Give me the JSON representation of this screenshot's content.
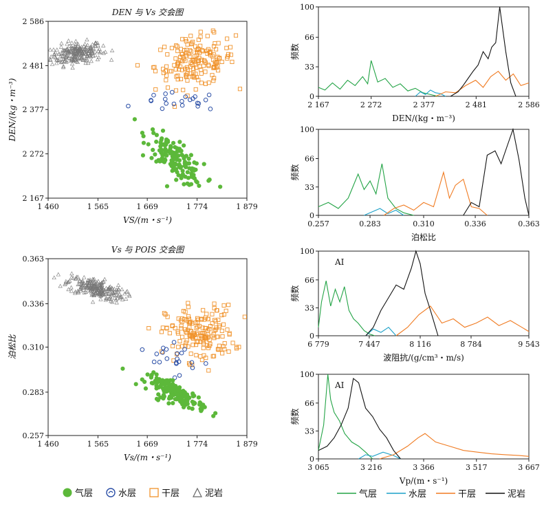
{
  "colors": {
    "gas": "#5cb83a",
    "water": "#2a4ea6",
    "dry": "#f0922a",
    "mud": "#888888",
    "gas_line": "#22a345",
    "water_line": "#1aa0c8",
    "dry_line": "#f07a20",
    "mud_line": "#111111"
  },
  "scatter_legend": [
    {
      "key": "gas",
      "label": "气层",
      "marker": "filled-circle"
    },
    {
      "key": "water",
      "label": "水层",
      "marker": "open-circle-curl"
    },
    {
      "key": "dry",
      "label": "干层",
      "marker": "open-square"
    },
    {
      "key": "mud",
      "label": "泥岩",
      "marker": "open-triangle"
    }
  ],
  "line_legend": [
    {
      "key": "gas",
      "label": "气层"
    },
    {
      "key": "water",
      "label": "水层"
    },
    {
      "key": "dry",
      "label": "干层"
    },
    {
      "key": "mud",
      "label": "泥岩"
    }
  ],
  "chart_data": [
    {
      "id": "scatter-den-vs",
      "type": "scatter",
      "title": "DEN 与 Vs 交会图",
      "xlabel": "VS/(m・s⁻¹)",
      "ylabel": "DEN/(kg・m⁻³)",
      "xlim": [
        1460,
        1879
      ],
      "ylim": [
        2167,
        2586
      ],
      "xticks": [
        1460,
        1565,
        1669,
        1774,
        1879
      ],
      "xtick_labels": [
        "1 460",
        "1 565",
        "1 669",
        "1 774",
        "1 879"
      ],
      "yticks": [
        2167,
        2272,
        2377,
        2481,
        2586
      ],
      "ytick_labels": [
        "2 167",
        "2 272",
        "2 377",
        "2 481",
        "2 586"
      ],
      "clusters": {
        "gas": {
          "x_center": 1728,
          "y_center": 2260,
          "x_spread": 50,
          "y_spread": 60,
          "count": 160,
          "trend": -0.9
        },
        "water": {
          "x_center": 1740,
          "y_center": 2395,
          "x_spread": 70,
          "y_spread": 18,
          "count": 22,
          "trend": 0
        },
        "dry": {
          "x_center": 1770,
          "y_center": 2490,
          "x_spread": 70,
          "y_spread": 55,
          "count": 170,
          "trend": 0.2
        },
        "mud": {
          "x_center": 1520,
          "y_center": 2510,
          "x_spread": 45,
          "y_spread": 25,
          "count": 230,
          "trend": 0.3
        }
      }
    },
    {
      "id": "scatter-pois-vs",
      "type": "scatter",
      "title": "Vs 与 POIS 交会图",
      "xlabel": "Vs/(m・s⁻¹)",
      "ylabel": "泊松比",
      "xlim": [
        1460,
        1879
      ],
      "ylim": [
        0.257,
        0.363
      ],
      "xticks": [
        1460,
        1565,
        1669,
        1774,
        1879
      ],
      "xtick_labels": [
        "1 460",
        "1 565",
        "1 669",
        "1 774",
        "1 879"
      ],
      "yticks": [
        0.257,
        0.283,
        0.31,
        0.336,
        0.363
      ],
      "ytick_labels": [
        "0.257",
        "0.283",
        "0.310",
        "0.336",
        "0.363"
      ],
      "clusters": {
        "gas": {
          "x_center": 1730,
          "y_center": 0.282,
          "x_spread": 50,
          "y_spread": 0.009,
          "count": 160,
          "trend": -0.9
        },
        "water": {
          "x_center": 1720,
          "y_center": 0.305,
          "x_spread": 80,
          "y_spread": 0.012,
          "count": 22,
          "trend": -0.5
        },
        "dry": {
          "x_center": 1780,
          "y_center": 0.318,
          "x_spread": 60,
          "y_spread": 0.014,
          "count": 170,
          "trend": 0
        },
        "mud": {
          "x_center": 1560,
          "y_center": 0.345,
          "x_spread": 50,
          "y_spread": 0.007,
          "count": 230,
          "trend": -0.6
        }
      }
    },
    {
      "id": "hist-den",
      "type": "line",
      "title": "",
      "xlabel": "DEN/(kg・m⁻³)",
      "ylabel": "频数",
      "annotation": "",
      "xlim": [
        2167,
        2586
      ],
      "ylim": [
        0,
        100
      ],
      "xticks": [
        2167,
        2272,
        2377,
        2481,
        2586
      ],
      "xtick_labels": [
        "2 167",
        "2 272",
        "2 377",
        "2 481",
        "2 586"
      ],
      "yticks": [
        0,
        33,
        66,
        100
      ],
      "series": [
        {
          "key": "gas",
          "x": [
            2167,
            2180,
            2195,
            2210,
            2225,
            2240,
            2255,
            2265,
            2272,
            2285,
            2300,
            2315,
            2330,
            2345,
            2360,
            2375,
            2390,
            2405
          ],
          "y": [
            10,
            7,
            15,
            8,
            18,
            12,
            22,
            14,
            40,
            16,
            20,
            10,
            14,
            6,
            9,
            4,
            2,
            0
          ]
        },
        {
          "key": "water",
          "x": [
            2360,
            2370,
            2380,
            2390,
            2400,
            2410,
            2420
          ],
          "y": [
            0,
            5,
            2,
            7,
            4,
            3,
            0
          ]
        },
        {
          "key": "dry",
          "x": [
            2400,
            2420,
            2440,
            2460,
            2480,
            2495,
            2510,
            2525,
            2540,
            2555,
            2570,
            2586
          ],
          "y": [
            0,
            5,
            4,
            12,
            18,
            10,
            22,
            28,
            18,
            25,
            12,
            15
          ]
        },
        {
          "key": "mud",
          "x": [
            2430,
            2445,
            2455,
            2465,
            2475,
            2485,
            2495,
            2505,
            2512,
            2520,
            2528,
            2540,
            2550,
            2560
          ],
          "y": [
            0,
            5,
            12,
            20,
            28,
            35,
            50,
            42,
            55,
            60,
            100,
            50,
            15,
            0
          ]
        }
      ]
    },
    {
      "id": "hist-pois",
      "type": "line",
      "title": "",
      "xlabel": "泊松比",
      "ylabel": "频数",
      "annotation": "",
      "xlim": [
        0.257,
        0.363
      ],
      "ylim": [
        0,
        100
      ],
      "xticks": [
        0.257,
        0.283,
        0.31,
        0.336,
        0.363
      ],
      "xtick_labels": [
        "0.257",
        "0.283",
        "0.310",
        "0.336",
        "0.363"
      ],
      "yticks": [
        0,
        33,
        66,
        100
      ],
      "series": [
        {
          "key": "gas",
          "x": [
            0.257,
            0.262,
            0.267,
            0.272,
            0.277,
            0.28,
            0.283,
            0.286,
            0.289,
            0.292,
            0.296,
            0.3,
            0.305
          ],
          "y": [
            10,
            15,
            8,
            20,
            48,
            30,
            40,
            25,
            60,
            20,
            8,
            3,
            0
          ]
        },
        {
          "key": "water",
          "x": [
            0.28,
            0.284,
            0.288,
            0.292,
            0.296,
            0.3
          ],
          "y": [
            0,
            4,
            8,
            2,
            6,
            0
          ]
        },
        {
          "key": "dry",
          "x": [
            0.29,
            0.295,
            0.3,
            0.305,
            0.31,
            0.315,
            0.32,
            0.323,
            0.326,
            0.33,
            0.334,
            0.338,
            0.342
          ],
          "y": [
            0,
            8,
            12,
            6,
            15,
            10,
            50,
            20,
            35,
            42,
            10,
            8,
            0
          ]
        },
        {
          "key": "mud",
          "x": [
            0.33,
            0.334,
            0.338,
            0.342,
            0.346,
            0.349,
            0.352,
            0.355,
            0.358,
            0.361,
            0.363
          ],
          "y": [
            0,
            15,
            10,
            70,
            75,
            60,
            80,
            100,
            65,
            20,
            0
          ]
        }
      ]
    },
    {
      "id": "hist-ai",
      "type": "line",
      "title": "",
      "xlabel": "波阻抗/(g/cm³・m/s)",
      "ylabel": "频数",
      "annotation": "AI",
      "xlim": [
        6779,
        9543
      ],
      "ylim": [
        0,
        100
      ],
      "xticks": [
        6779,
        7447,
        8116,
        8784,
        9543
      ],
      "xtick_labels": [
        "6 779",
        "7 447",
        "8 116",
        "8 784",
        "9 543"
      ],
      "yticks": [
        0,
        33,
        66,
        100
      ],
      "series": [
        {
          "key": "gas",
          "x": [
            6779,
            6820,
            6880,
            6940,
            7000,
            7060,
            7120,
            7180,
            7240,
            7300,
            7380,
            7450,
            7520
          ],
          "y": [
            10,
            40,
            65,
            35,
            55,
            40,
            58,
            30,
            20,
            15,
            6,
            2,
            0
          ]
        },
        {
          "key": "water",
          "x": [
            7400,
            7500,
            7600,
            7700,
            7800
          ],
          "y": [
            0,
            8,
            4,
            10,
            0
          ]
        },
        {
          "key": "dry",
          "x": [
            7800,
            7950,
            8100,
            8250,
            8400,
            8550,
            8700,
            8850,
            9000,
            9150,
            9300,
            9450,
            9543
          ],
          "y": [
            0,
            10,
            25,
            35,
            15,
            20,
            10,
            15,
            22,
            12,
            18,
            10,
            5
          ]
        },
        {
          "key": "mud",
          "x": [
            7400,
            7500,
            7600,
            7700,
            7800,
            7900,
            8000,
            8060,
            8116,
            8180,
            8250,
            8350
          ],
          "y": [
            0,
            10,
            30,
            45,
            60,
            55,
            80,
            100,
            85,
            50,
            30,
            0
          ]
        }
      ]
    },
    {
      "id": "hist-vp",
      "type": "line",
      "title": "",
      "xlabel": "Vp/(m・s⁻¹)",
      "ylabel": "频数",
      "annotation": "AI",
      "xlim": [
        3065,
        3667
      ],
      "ylim": [
        0,
        100
      ],
      "xticks": [
        3065,
        3216,
        3366,
        3517,
        3667
      ],
      "xtick_labels": [
        "3 065",
        "3 216",
        "3 366",
        "3 517",
        "3 667"
      ],
      "yticks": [
        0,
        33,
        66,
        100
      ],
      "series": [
        {
          "key": "gas",
          "x": [
            3065,
            3080,
            3092,
            3100,
            3110,
            3125,
            3140,
            3160,
            3180,
            3200,
            3220
          ],
          "y": [
            10,
            40,
            100,
            70,
            55,
            45,
            30,
            20,
            15,
            8,
            0
          ]
        },
        {
          "key": "water",
          "x": [
            3180,
            3200,
            3220,
            3250,
            3280,
            3300
          ],
          "y": [
            0,
            5,
            3,
            8,
            4,
            0
          ]
        },
        {
          "key": "dry",
          "x": [
            3240,
            3280,
            3320,
            3350,
            3370,
            3400,
            3440,
            3480,
            3520,
            3560,
            3600,
            3640,
            3667
          ],
          "y": [
            0,
            5,
            15,
            25,
            30,
            20,
            15,
            10,
            8,
            6,
            5,
            4,
            3
          ]
        },
        {
          "key": "mud",
          "x": [
            3065,
            3090,
            3110,
            3130,
            3150,
            3165,
            3180,
            3200,
            3220,
            3240,
            3260,
            3280,
            3300
          ],
          "y": [
            10,
            15,
            25,
            40,
            60,
            95,
            90,
            60,
            50,
            35,
            25,
            10,
            0
          ]
        }
      ]
    }
  ]
}
